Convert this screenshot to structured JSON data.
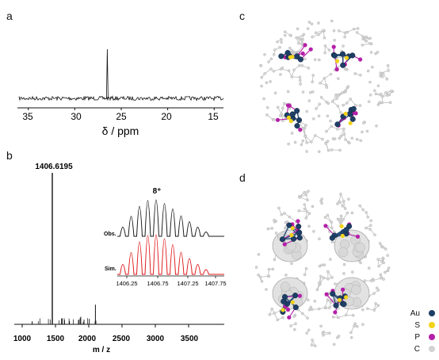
{
  "panels": {
    "a": {
      "letter": "a",
      "xlabel": "δ / ppm",
      "ticks": [
        "35",
        "30",
        "25",
        "20",
        "15"
      ],
      "chart_data": {
        "type": "line",
        "title": "",
        "xlabel": "δ / ppm",
        "ylabel": "",
        "xlim": [
          36,
          14
        ],
        "peaks": [
          {
            "x": 26.5,
            "relative_height": 1.0
          }
        ]
      }
    },
    "b": {
      "letter": "b",
      "xlabel": "m / z",
      "ticks": [
        "1000",
        "1500",
        "2000",
        "2500",
        "3000",
        "3500"
      ],
      "main_peak_label": "1406.6195",
      "inset": {
        "charge": "8⁺",
        "obs_label": "Obs.",
        "sim_label": "Sim.",
        "ticks": [
          "1406.25",
          "1406.75",
          "1407.25",
          "1407.75"
        ],
        "obs_color": "#1a1a1a",
        "sim_color": "#e0191b"
      },
      "chart_data": {
        "type": "bar",
        "title": "",
        "xlabel": "m / z",
        "ylabel": "",
        "xlim": [
          900,
          3650
        ],
        "peaks": [
          {
            "x": 1406.6195,
            "relative_height": 1.0
          },
          {
            "x": 2100,
            "relative_height": 0.13
          },
          {
            "x": 1880,
            "relative_height": 0.05
          },
          {
            "x": 1600,
            "relative_height": 0.04
          },
          {
            "x": 1150,
            "relative_height": 0.02
          }
        ]
      }
    },
    "c": {
      "letter": "c"
    },
    "d": {
      "letter": "d",
      "legend": [
        {
          "label": "Au",
          "color": "#1e3f66"
        },
        {
          "label": "S",
          "color": "#f2d21b"
        },
        {
          "label": "P",
          "color": "#b51fa8"
        },
        {
          "label": "C",
          "color": "#d3d3d3"
        }
      ]
    }
  }
}
